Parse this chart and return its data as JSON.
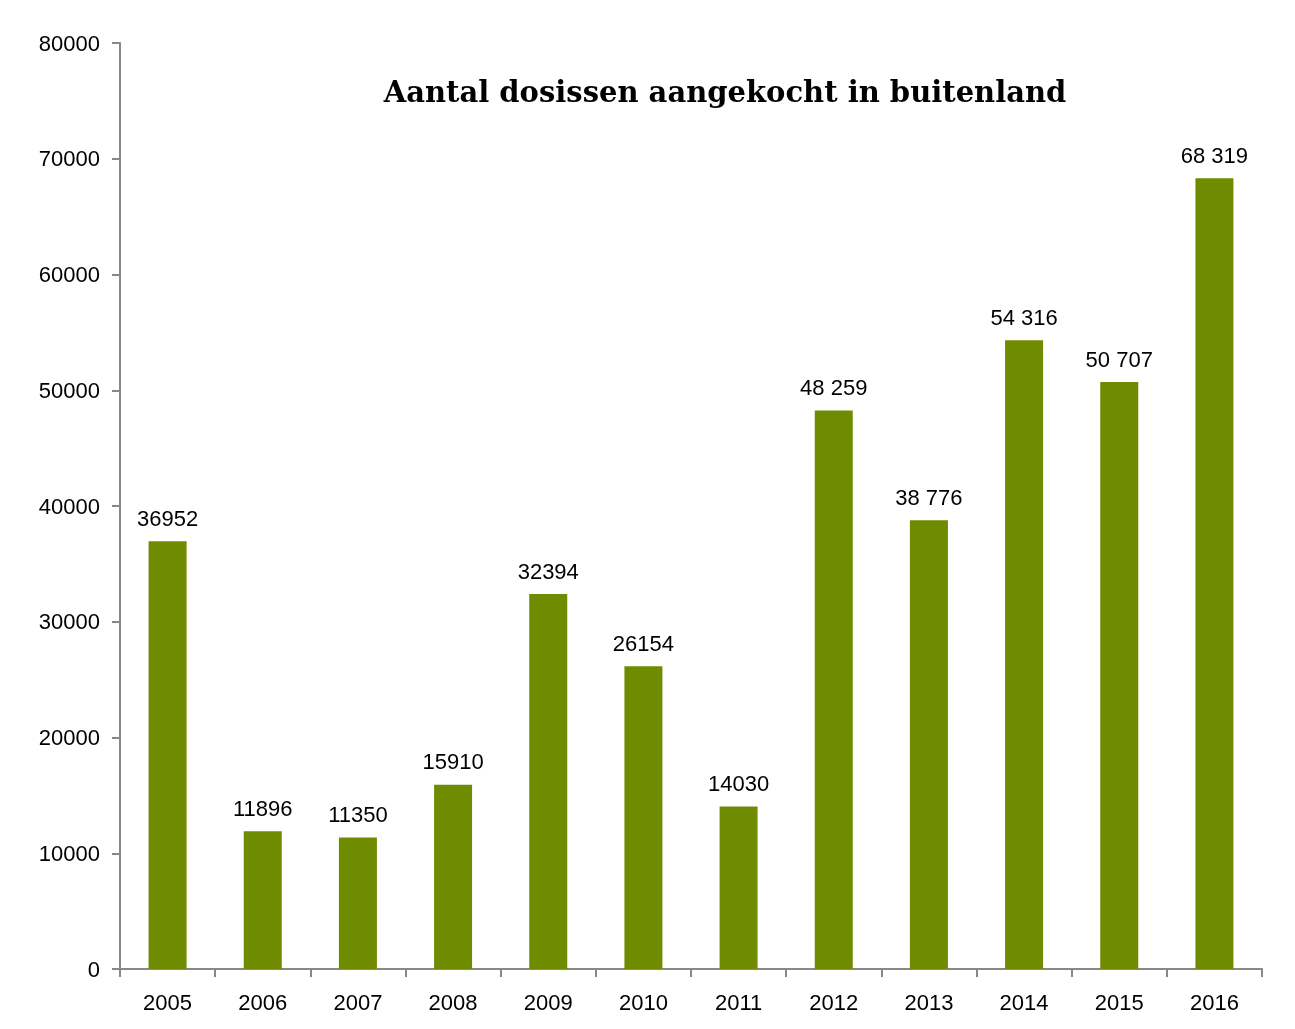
{
  "chart_data": {
    "type": "bar",
    "title": "Aantal dosissen aangekocht in buitenland",
    "categories": [
      "2005",
      "2006",
      "2007",
      "2008",
      "2009",
      "2010",
      "2011",
      "2012",
      "2013",
      "2014",
      "2015",
      "2016"
    ],
    "values": [
      36952,
      11896,
      11350,
      15910,
      32394,
      26154,
      14030,
      48259,
      38776,
      54316,
      50707,
      68319
    ],
    "value_labels": [
      "36952",
      "11896",
      "11350",
      "15910",
      "32394",
      "26154",
      "14030",
      "48 259",
      "38 776",
      "54 316",
      "50 707",
      "68 319"
    ],
    "color": "#6f8c00",
    "ylim": [
      0,
      80000
    ],
    "yticks": [
      0,
      10000,
      20000,
      30000,
      40000,
      50000,
      60000,
      70000,
      80000
    ],
    "grid": false
  }
}
